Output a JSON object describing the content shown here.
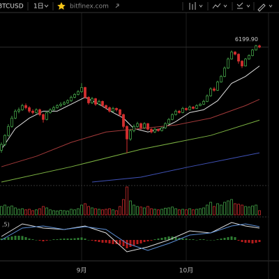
{
  "toolbar": {
    "symbol": "BTCUSD",
    "interval": "1日",
    "source": "bitfinex.com"
  },
  "chart_data": {
    "type": "candlestick",
    "log_scale": true,
    "ylim": [
      2300,
      8700
    ],
    "up_color": "#43a047",
    "down_color": "#d32f2f",
    "last_label": "6199.90",
    "categories": [
      null,
      null,
      null,
      null,
      null,
      null,
      null,
      null,
      null,
      null,
      null,
      null,
      null,
      null,
      null,
      null,
      null,
      null,
      null,
      null,
      null,
      null,
      null,
      "9月",
      null,
      null,
      null,
      null,
      null,
      null,
      null,
      null,
      null,
      null,
      null,
      null,
      null,
      null,
      null,
      null,
      null,
      null,
      null,
      null,
      null,
      null,
      null,
      null,
      null,
      null,
      null,
      null,
      null,
      "10月",
      null,
      null,
      null,
      null,
      null,
      null,
      null,
      null,
      null,
      null,
      null,
      null,
      null,
      null,
      null,
      null,
      null,
      null,
      null,
      null,
      null
    ],
    "ohlc": [
      [
        2950,
        3120,
        2900,
        3075
      ],
      [
        3075,
        3310,
        3040,
        3282
      ],
      [
        3282,
        3560,
        3250,
        3502
      ],
      [
        3502,
        3780,
        3470,
        3718
      ],
      [
        3718,
        3960,
        3690,
        3909
      ],
      [
        3909,
        4010,
        3850,
        3948
      ],
      [
        3948,
        4120,
        3920,
        4069
      ],
      [
        4069,
        4130,
        3960,
        4008
      ],
      [
        4008,
        4050,
        3860,
        3909
      ],
      [
        3909,
        3960,
        3820,
        3870
      ],
      [
        3870,
        3990,
        3840,
        3948
      ],
      [
        3948,
        3980,
        3770,
        3813
      ],
      [
        3813,
        3840,
        3600,
        3682
      ],
      [
        3682,
        3910,
        3660,
        3870
      ],
      [
        3870,
        3990,
        3840,
        3948
      ],
      [
        3948,
        4060,
        3920,
        4008
      ],
      [
        4008,
        4110,
        3980,
        4069
      ],
      [
        4069,
        4170,
        4030,
        4109
      ],
      [
        4109,
        4200,
        4080,
        4151
      ],
      [
        4151,
        4260,
        4120,
        4213
      ],
      [
        4213,
        4370,
        4180,
        4320
      ],
      [
        4320,
        4450,
        4290,
        4408
      ],
      [
        4408,
        4550,
        4380,
        4497
      ],
      [
        4497,
        4780,
        4460,
        4634
      ],
      [
        4634,
        4660,
        4280,
        4320
      ],
      [
        4320,
        4350,
        4100,
        4151
      ],
      [
        4151,
        4330,
        4120,
        4277
      ],
      [
        4277,
        4300,
        4060,
        4109
      ],
      [
        4109,
        4240,
        4080,
        4193
      ],
      [
        4193,
        4220,
        4030,
        4069
      ],
      [
        4069,
        4100,
        3960,
        4008
      ],
      [
        4008,
        4040,
        3870,
        3909
      ],
      [
        3909,
        4030,
        3880,
        3988
      ],
      [
        3988,
        4010,
        3900,
        3948
      ],
      [
        3948,
        3970,
        3760,
        3813
      ],
      [
        3813,
        3840,
        3450,
        3502
      ],
      [
        3502,
        3530,
        2890,
        3200
      ],
      [
        3200,
        3440,
        3160,
        3398
      ],
      [
        3398,
        3550,
        3360,
        3502
      ],
      [
        3502,
        3620,
        3470,
        3573
      ],
      [
        3573,
        3600,
        3420,
        3467
      ],
      [
        3467,
        3610,
        3440,
        3573
      ],
      [
        3573,
        3590,
        3400,
        3433
      ],
      [
        3433,
        3460,
        3330,
        3364
      ],
      [
        3364,
        3470,
        3340,
        3433
      ],
      [
        3433,
        3450,
        3370,
        3398
      ],
      [
        3398,
        3500,
        3380,
        3467
      ],
      [
        3467,
        3610,
        3440,
        3573
      ],
      [
        3573,
        3720,
        3550,
        3682
      ],
      [
        3682,
        3850,
        3660,
        3813
      ],
      [
        3813,
        3950,
        3790,
        3909
      ],
      [
        3909,
        3940,
        3840,
        3870
      ],
      [
        3870,
        4030,
        3850,
        3988
      ],
      [
        3988,
        4010,
        3920,
        3948
      ],
      [
        3948,
        4070,
        3930,
        4028
      ],
      [
        4028,
        4050,
        3960,
        3988
      ],
      [
        3988,
        4110,
        3970,
        4069
      ],
      [
        4069,
        4150,
        4050,
        4109
      ],
      [
        4109,
        4240,
        4090,
        4193
      ],
      [
        4193,
        4410,
        4170,
        4364
      ],
      [
        4364,
        4640,
        4340,
        4588
      ],
      [
        4588,
        4650,
        4500,
        4542
      ],
      [
        4542,
        4870,
        4520,
        4822
      ],
      [
        4822,
        5070,
        4800,
        5019
      ],
      [
        5019,
        5390,
        4990,
        5330
      ],
      [
        5330,
        5750,
        5300,
        5688
      ],
      [
        5688,
        6050,
        5660,
        5980
      ],
      [
        5980,
        6020,
        5840,
        5890
      ],
      [
        5890,
        5920,
        5500,
        5603
      ],
      [
        5603,
        5640,
        5330,
        5411
      ],
      [
        5411,
        5730,
        5390,
        5688
      ],
      [
        5688,
        5880,
        5660,
        5832
      ],
      [
        5832,
        6120,
        5800,
        6070
      ],
      [
        6070,
        6300,
        6040,
        6254
      ],
      [
        6254,
        6310,
        6150,
        6199.9
      ]
    ],
    "lines": [
      {
        "color": "#e0e0e0",
        "x": [
          0,
          4,
          8,
          12,
          16,
          20,
          24,
          28,
          32,
          35,
          38,
          42,
          46,
          50,
          54,
          58,
          62,
          66,
          70,
          74
        ],
        "values": [
          2969,
          3450,
          3718,
          3909,
          3909,
          4109,
          4320,
          4109,
          3870,
          3718,
          3450,
          3364,
          3450,
          3627,
          3870,
          3948,
          4213,
          4775,
          5019,
          5411
        ]
      },
      {
        "color": "#a33a3a",
        "x": [
          0,
          10,
          20,
          30,
          40,
          50,
          60,
          70,
          74
        ],
        "values": [
          2620,
          2825,
          3122,
          3364,
          3450,
          3537,
          3718,
          4069,
          4256
        ]
      },
      {
        "color": "#7cb342",
        "x": [
          0,
          20,
          40,
          60,
          74
        ],
        "values": [
          2347,
          2620,
          2969,
          3282,
          3664
        ]
      },
      {
        "color": "#3f51b5",
        "x": [
          26,
          40,
          54,
          66,
          74
        ],
        "values": [
          2347,
          2431,
          2620,
          2782,
          2896
        ]
      }
    ],
    "volume": {
      "ylim": [
        0,
        100
      ],
      "values": [
        30,
        35,
        28,
        32,
        25,
        20,
        22,
        18,
        20,
        15,
        18,
        22,
        30,
        25,
        18,
        15,
        14,
        16,
        15,
        14,
        20,
        18,
        22,
        35,
        40,
        30,
        25,
        22,
        20,
        18,
        20,
        22,
        18,
        15,
        30,
        55,
        100,
        50,
        35,
        30,
        28,
        25,
        30,
        22,
        20,
        18,
        20,
        24,
        25,
        28,
        22,
        18,
        20,
        18,
        22,
        18,
        20,
        22,
        25,
        35,
        45,
        30,
        40,
        35,
        45,
        50,
        55,
        40,
        38,
        35,
        30,
        28,
        32,
        35,
        15
      ]
    },
    "oscillator": {
      "label": ",5)",
      "ylim": [
        -150,
        150
      ],
      "hist_up_color": "#2e7d32",
      "hist_down_color": "#b71c1c",
      "lines": [
        {
          "color": "#e0e0e0",
          "x": [
            0,
            6,
            12,
            18,
            24,
            30,
            36,
            42,
            48,
            54,
            60,
            66,
            70,
            74
          ],
          "values": [
            25,
            115,
            85,
            75,
            100,
            50,
            -85,
            -50,
            0,
            65,
            50,
            125,
            100,
            85
          ]
        },
        {
          "color": "#5c8fd6",
          "x": [
            0,
            6,
            12,
            18,
            24,
            30,
            36,
            42,
            48,
            54,
            60,
            66,
            70,
            74
          ],
          "values": [
            0,
            85,
            100,
            75,
            95,
            75,
            -25,
            -75,
            -25,
            35,
            50,
            100,
            115,
            95
          ]
        }
      ],
      "histogram": [
        10,
        15,
        20,
        25,
        30,
        30,
        28,
        20,
        10,
        5,
        0,
        -5,
        -10,
        -5,
        0,
        5,
        5,
        8,
        10,
        10,
        10,
        12,
        15,
        18,
        10,
        0,
        -5,
        -10,
        -15,
        -20,
        -20,
        -25,
        -30,
        -30,
        -35,
        -45,
        -60,
        -50,
        -40,
        -30,
        -25,
        -15,
        -10,
        -5,
        5,
        10,
        15,
        20,
        25,
        25,
        20,
        15,
        10,
        10,
        5,
        5,
        0,
        5,
        5,
        0,
        0,
        0,
        5,
        10,
        15,
        20,
        25,
        20,
        -5,
        -15,
        -20,
        -20,
        -25,
        -20,
        -15
      ]
    }
  }
}
